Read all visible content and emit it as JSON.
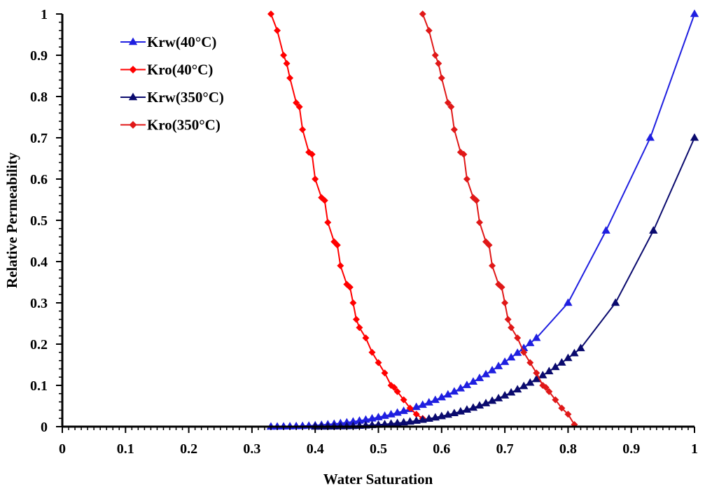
{
  "chart_data": {
    "type": "line",
    "title": "",
    "xlabel": "Water Saturation",
    "ylabel": "Relative Permeability",
    "xlim": [
      0,
      1
    ],
    "ylim": [
      0,
      1
    ],
    "x_ticks": [
      0,
      0.1,
      0.2,
      0.3,
      0.4,
      0.5,
      0.6,
      0.7,
      0.8,
      0.9,
      1
    ],
    "x_tick_labels": [
      "0",
      "0.1",
      "0.2",
      "0.3",
      "0.4",
      "0.5",
      "0.6",
      "0.7",
      "0.8",
      "0.9",
      "1"
    ],
    "y_ticks": [
      0,
      0.1,
      0.2,
      0.3,
      0.4,
      0.5,
      0.6,
      0.7,
      0.8,
      0.9,
      1
    ],
    "y_tick_labels": [
      "0",
      "0.1",
      "0.2",
      "0.3",
      "0.4",
      "0.5",
      "0.6",
      "0.7",
      "0.8",
      "0.9",
      "1"
    ],
    "grid": false,
    "legend_position": "top-left",
    "series": [
      {
        "name": "Krw(40°C)",
        "color": "#1f1fe0",
        "marker": "triangle",
        "x": [
          0.33,
          0.34,
          0.35,
          0.36,
          0.37,
          0.38,
          0.39,
          0.4,
          0.41,
          0.42,
          0.43,
          0.44,
          0.45,
          0.46,
          0.47,
          0.48,
          0.49,
          0.5,
          0.51,
          0.52,
          0.53,
          0.54,
          0.55,
          0.56,
          0.57,
          0.58,
          0.59,
          0.6,
          0.61,
          0.62,
          0.63,
          0.64,
          0.65,
          0.66,
          0.67,
          0.68,
          0.69,
          0.7,
          0.71,
          0.72,
          0.73,
          0.74,
          0.75,
          0.8,
          0.86,
          0.93,
          1.0
        ],
        "y": [
          0,
          0.0001,
          0.0003,
          0.0006,
          0.001,
          0.0015,
          0.0022,
          0.003,
          0.004,
          0.0052,
          0.0066,
          0.0082,
          0.01,
          0.012,
          0.0143,
          0.0168,
          0.0196,
          0.0227,
          0.026,
          0.0297,
          0.0336,
          0.0379,
          0.0425,
          0.0475,
          0.0528,
          0.0585,
          0.0645,
          0.071,
          0.0778,
          0.085,
          0.0925,
          0.1005,
          0.1089,
          0.1176,
          0.1268,
          0.1364,
          0.1463,
          0.1567,
          0.1675,
          0.1787,
          0.1903,
          0.2023,
          0.2148,
          0.3,
          0.475,
          0.7,
          1.0
        ]
      },
      {
        "name": "Kro(40°C)",
        "color": "#ff0000",
        "marker": "diamond",
        "x": [
          0.33,
          0.34,
          0.35,
          0.355,
          0.36,
          0.37,
          0.375,
          0.38,
          0.39,
          0.395,
          0.4,
          0.41,
          0.415,
          0.42,
          0.43,
          0.435,
          0.44,
          0.45,
          0.455,
          0.46,
          0.465,
          0.47,
          0.48,
          0.49,
          0.5,
          0.51,
          0.52,
          0.525,
          0.53,
          0.54,
          0.55,
          0.56,
          0.57
        ],
        "y": [
          1.0,
          0.96,
          0.9,
          0.88,
          0.845,
          0.785,
          0.775,
          0.72,
          0.665,
          0.66,
          0.6,
          0.555,
          0.548,
          0.495,
          0.448,
          0.44,
          0.39,
          0.345,
          0.338,
          0.3,
          0.26,
          0.24,
          0.215,
          0.18,
          0.155,
          0.13,
          0.1,
          0.095,
          0.085,
          0.065,
          0.045,
          0.03,
          0.02
        ]
      },
      {
        "name": "Krw(350°C)",
        "color": "#0a0a6e",
        "marker": "triangle",
        "x": [
          0.4,
          0.41,
          0.42,
          0.43,
          0.44,
          0.45,
          0.46,
          0.47,
          0.48,
          0.49,
          0.5,
          0.51,
          0.52,
          0.53,
          0.54,
          0.55,
          0.56,
          0.57,
          0.58,
          0.59,
          0.6,
          0.61,
          0.62,
          0.63,
          0.64,
          0.65,
          0.66,
          0.67,
          0.68,
          0.69,
          0.7,
          0.71,
          0.72,
          0.73,
          0.74,
          0.75,
          0.76,
          0.77,
          0.78,
          0.79,
          0.8,
          0.81,
          0.82,
          0.875,
          0.935,
          1.0
        ],
        "y": [
          0,
          0.0001,
          0.0002,
          0.0004,
          0.0007,
          0.001,
          0.0015,
          0.002,
          0.0027,
          0.0035,
          0.0045,
          0.0056,
          0.0069,
          0.0084,
          0.0101,
          0.012,
          0.0141,
          0.0165,
          0.0191,
          0.022,
          0.0252,
          0.0287,
          0.0325,
          0.0366,
          0.041,
          0.0458,
          0.051,
          0.0565,
          0.0624,
          0.0687,
          0.0754,
          0.0825,
          0.09,
          0.098,
          0.1063,
          0.1151,
          0.1244,
          0.1341,
          0.1443,
          0.155,
          0.1661,
          0.1777,
          0.19,
          0.3,
          0.475,
          0.7
        ]
      },
      {
        "name": "Kro(350°C)",
        "color": "#e01818",
        "marker": "diamond",
        "x": [
          0.57,
          0.58,
          0.59,
          0.595,
          0.6,
          0.61,
          0.615,
          0.62,
          0.63,
          0.635,
          0.64,
          0.65,
          0.655,
          0.66,
          0.67,
          0.675,
          0.68,
          0.69,
          0.695,
          0.7,
          0.705,
          0.71,
          0.72,
          0.73,
          0.74,
          0.75,
          0.76,
          0.765,
          0.77,
          0.78,
          0.79,
          0.8,
          0.81
        ],
        "y": [
          1.0,
          0.96,
          0.9,
          0.88,
          0.845,
          0.785,
          0.775,
          0.72,
          0.665,
          0.66,
          0.6,
          0.555,
          0.548,
          0.495,
          0.448,
          0.44,
          0.39,
          0.345,
          0.338,
          0.3,
          0.26,
          0.24,
          0.215,
          0.18,
          0.155,
          0.13,
          0.1,
          0.095,
          0.085,
          0.065,
          0.045,
          0.03,
          0.005
        ]
      }
    ]
  }
}
